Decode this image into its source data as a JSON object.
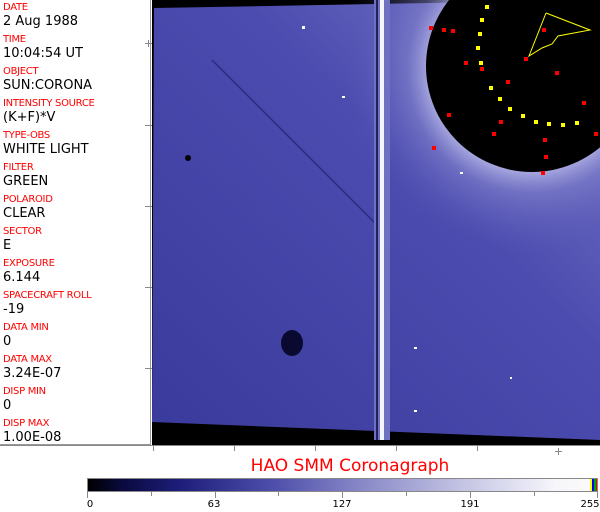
{
  "header_fields": [
    {
      "label": "DATE",
      "value": "2 Aug 1988"
    },
    {
      "label": "TIME",
      "value": "10:04:54 UT"
    },
    {
      "label": "OBJECT",
      "value": "SUN:CORONA"
    },
    {
      "label": "INTENSITY SOURCE",
      "value": "(K+F)*V"
    },
    {
      "label": "TYPE-OBS",
      "value": "WHITE LIGHT"
    },
    {
      "label": "FILTER",
      "value": "GREEN"
    },
    {
      "label": "POLAROID",
      "value": "CLEAR"
    },
    {
      "label": "SECTOR",
      "value": "E"
    },
    {
      "label": "EXPOSURE",
      "value": "6.144"
    },
    {
      "label": "SPACECRAFT ROLL",
      "value": "-19"
    },
    {
      "label": "DATA MIN",
      "value": "0"
    },
    {
      "label": "DATA MAX",
      "value": "3.24E-07"
    },
    {
      "label": "DISP MIN",
      "value": "0"
    },
    {
      "label": "DISP MAX",
      "value": "1.00E-08"
    }
  ],
  "title": "HAO  SMM Coronagraph",
  "colorbar": {
    "ticks": [
      "0",
      "63",
      "127",
      "191",
      "255"
    ],
    "min": 0,
    "max": 255,
    "colors": {
      "low": "#000000",
      "mid": "#4a4aa8",
      "high": "#fafafa",
      "overlay": [
        "#ffff00",
        "#0000ff",
        "#00a000",
        "#ff0000"
      ]
    }
  },
  "image": {
    "background": "#000000",
    "corona_color": "#3c3ca0",
    "overlay_colors": [
      "#ff0000",
      "#ffff00"
    ]
  }
}
